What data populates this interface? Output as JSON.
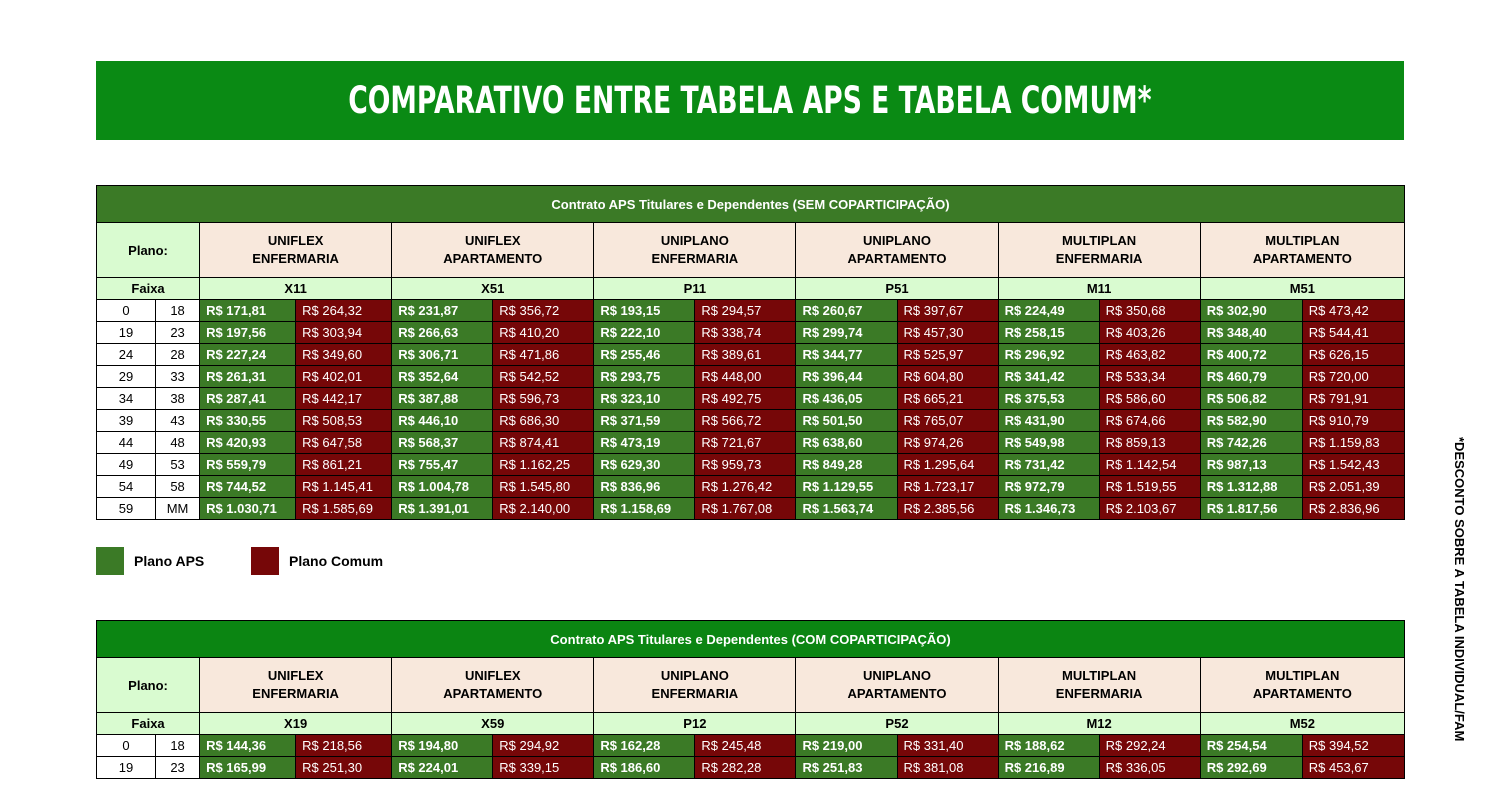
{
  "banner": {
    "title": "COMPARATIVO ENTRE TABELA APS E TABELA COMUM*"
  },
  "side_note": "*DESCONTO SOBRE A TABELA INDIVIDUAL/FAM",
  "colors": {
    "banner": "#0a8a14",
    "aps": "#3b7a26",
    "comum": "#760708",
    "header_green": "#d9fbd0",
    "plan_header": "#f8e8dc"
  },
  "legend": {
    "aps_label": "Plano APS",
    "comum_label": "Plano Comum"
  },
  "table1": {
    "title": "Contrato APS Titulares e Dependentes (SEM COPARTICIPAÇÃO)",
    "plano_label": "Plano:",
    "faixa_label": "Faixa",
    "plans": [
      {
        "line1": "UNIFLEX",
        "line2": "ENFERMARIA",
        "code": "X11"
      },
      {
        "line1": "UNIFLEX",
        "line2": "APARTAMENTO",
        "code": "X51"
      },
      {
        "line1": "UNIPLANO",
        "line2": "ENFERMARIA",
        "code": "P11"
      },
      {
        "line1": "UNIPLANO",
        "line2": "APARTAMENTO",
        "code": "P51"
      },
      {
        "line1": "MULTIPLAN",
        "line2": "ENFERMARIA",
        "code": "M11"
      },
      {
        "line1": "MULTIPLAN",
        "line2": "APARTAMENTO",
        "code": "M51"
      }
    ],
    "rows": [
      {
        "from": "0",
        "to": "18",
        "values": [
          "R$ 171,81",
          "R$ 264,32",
          "R$ 231,87",
          "R$ 356,72",
          "R$ 193,15",
          "R$ 294,57",
          "R$ 260,67",
          "R$ 397,67",
          "R$ 224,49",
          "R$ 350,68",
          "R$ 302,90",
          "R$ 473,42"
        ]
      },
      {
        "from": "19",
        "to": "23",
        "values": [
          "R$ 197,56",
          "R$ 303,94",
          "R$ 266,63",
          "R$ 410,20",
          "R$ 222,10",
          "R$ 338,74",
          "R$ 299,74",
          "R$ 457,30",
          "R$ 258,15",
          "R$ 403,26",
          "R$ 348,40",
          "R$ 544,41"
        ]
      },
      {
        "from": "24",
        "to": "28",
        "values": [
          "R$ 227,24",
          "R$ 349,60",
          "R$ 306,71",
          "R$ 471,86",
          "R$ 255,46",
          "R$ 389,61",
          "R$ 344,77",
          "R$ 525,97",
          "R$ 296,92",
          "R$ 463,82",
          "R$ 400,72",
          "R$ 626,15"
        ]
      },
      {
        "from": "29",
        "to": "33",
        "values": [
          "R$ 261,31",
          "R$ 402,01",
          "R$ 352,64",
          "R$ 542,52",
          "R$ 293,75",
          "R$ 448,00",
          "R$ 396,44",
          "R$ 604,80",
          "R$ 341,42",
          "R$ 533,34",
          "R$ 460,79",
          "R$ 720,00"
        ]
      },
      {
        "from": "34",
        "to": "38",
        "values": [
          "R$ 287,41",
          "R$ 442,17",
          "R$ 387,88",
          "R$ 596,73",
          "R$ 323,10",
          "R$ 492,75",
          "R$ 436,05",
          "R$ 665,21",
          "R$ 375,53",
          "R$ 586,60",
          "R$ 506,82",
          "R$ 791,91"
        ]
      },
      {
        "from": "39",
        "to": "43",
        "values": [
          "R$ 330,55",
          "R$ 508,53",
          "R$ 446,10",
          "R$ 686,30",
          "R$ 371,59",
          "R$ 566,72",
          "R$ 501,50",
          "R$ 765,07",
          "R$ 431,90",
          "R$ 674,66",
          "R$ 582,90",
          "R$ 910,79"
        ]
      },
      {
        "from": "44",
        "to": "48",
        "values": [
          "R$ 420,93",
          "R$ 647,58",
          "R$ 568,37",
          "R$ 874,41",
          "R$ 473,19",
          "R$ 721,67",
          "R$ 638,60",
          "R$ 974,26",
          "R$ 549,98",
          "R$ 859,13",
          "R$ 742,26",
          "R$ 1.159,83"
        ]
      },
      {
        "from": "49",
        "to": "53",
        "values": [
          "R$ 559,79",
          "R$ 861,21",
          "R$ 755,47",
          "R$ 1.162,25",
          "R$ 629,30",
          "R$ 959,73",
          "R$ 849,28",
          "R$ 1.295,64",
          "R$ 731,42",
          "R$ 1.142,54",
          "R$ 987,13",
          "R$ 1.542,43"
        ]
      },
      {
        "from": "54",
        "to": "58",
        "values": [
          "R$ 744,52",
          "R$ 1.145,41",
          "R$ 1.004,78",
          "R$ 1.545,80",
          "R$ 836,96",
          "R$ 1.276,42",
          "R$ 1.129,55",
          "R$ 1.723,17",
          "R$ 972,79",
          "R$ 1.519,55",
          "R$ 1.312,88",
          "R$ 2.051,39"
        ]
      },
      {
        "from": "59",
        "to": "MM",
        "values": [
          "R$ 1.030,71",
          "R$ 1.585,69",
          "R$ 1.391,01",
          "R$ 2.140,00",
          "R$ 1.158,69",
          "R$ 1.767,08",
          "R$ 1.563,74",
          "R$ 2.385,56",
          "R$ 1.346,73",
          "R$ 2.103,67",
          "R$ 1.817,56",
          "R$ 2.836,96"
        ]
      }
    ]
  },
  "table2": {
    "title": "Contrato APS Titulares e Dependentes (COM COPARTICIPAÇÃO)",
    "plano_label": "Plano:",
    "faixa_label": "Faixa",
    "plans": [
      {
        "line1": "UNIFLEX",
        "line2": "ENFERMARIA",
        "code": "X19"
      },
      {
        "line1": "UNIFLEX",
        "line2": "APARTAMENTO",
        "code": "X59"
      },
      {
        "line1": "UNIPLANO",
        "line2": "ENFERMARIA",
        "code": "P12"
      },
      {
        "line1": "UNIPLANO",
        "line2": "APARTAMENTO",
        "code": "P52"
      },
      {
        "line1": "MULTIPLAN",
        "line2": "ENFERMARIA",
        "code": "M12"
      },
      {
        "line1": "MULTIPLAN",
        "line2": "APARTAMENTO",
        "code": "M52"
      }
    ],
    "rows": [
      {
        "from": "0",
        "to": "18",
        "values": [
          "R$ 144,36",
          "R$ 218,56",
          "R$ 194,80",
          "R$ 294,92",
          "R$ 162,28",
          "R$ 245,48",
          "R$ 219,00",
          "R$ 331,40",
          "R$ 188,62",
          "R$ 292,24",
          "R$ 254,54",
          "R$ 394,52"
        ]
      },
      {
        "from": "19",
        "to": "23",
        "values": [
          "R$ 165,99",
          "R$ 251,30",
          "R$ 224,01",
          "R$ 339,15",
          "R$ 186,60",
          "R$ 282,28",
          "R$ 251,83",
          "R$ 381,08",
          "R$ 216,89",
          "R$ 336,05",
          "R$ 292,69",
          "R$ 453,67"
        ]
      }
    ]
  }
}
